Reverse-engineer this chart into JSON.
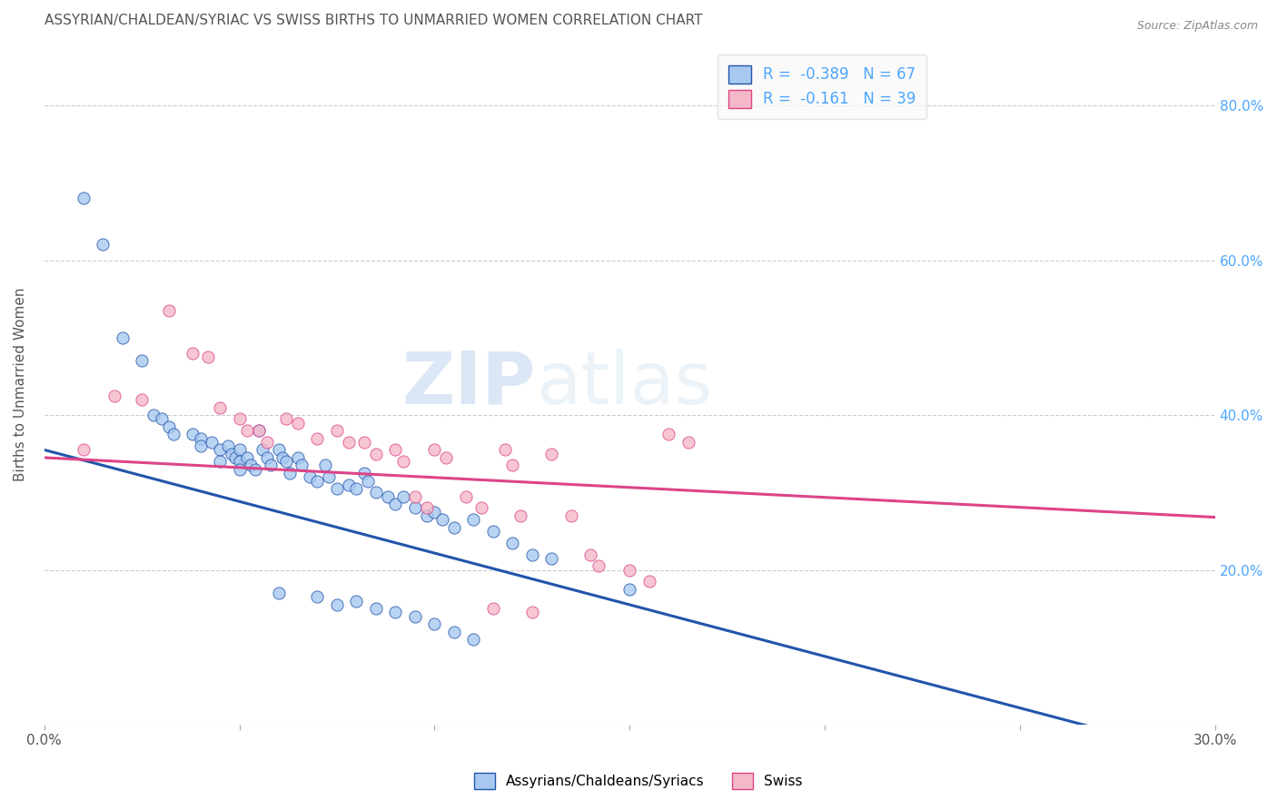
{
  "title": "ASSYRIAN/CHALDEAN/SYRIAC VS SWISS BIRTHS TO UNMARRIED WOMEN CORRELATION CHART",
  "source": "Source: ZipAtlas.com",
  "ylabel": "Births to Unmarried Women",
  "xlim": [
    0.0,
    0.3
  ],
  "ylim": [
    0.0,
    0.88
  ],
  "right_yticks": [
    0.2,
    0.4,
    0.6,
    0.8
  ],
  "right_yticklabels": [
    "20.0%",
    "40.0%",
    "60.0%",
    "80.0%"
  ],
  "xtick_positions": [
    0.0,
    0.05,
    0.1,
    0.15,
    0.2,
    0.25,
    0.3
  ],
  "xticklabels": [
    "0.0%",
    "",
    "",
    "",
    "",
    "",
    "30.0%"
  ],
  "blue_R": "-0.389",
  "blue_N": 67,
  "pink_R": "-0.161",
  "pink_N": 39,
  "blue_color": "#a8c8f0",
  "pink_color": "#f4b8c8",
  "blue_line_color": "#2255aa",
  "pink_line_color": "#dd4488",
  "blue_scatter": [
    [
      0.01,
      0.68
    ],
    [
      0.015,
      0.62
    ],
    [
      0.02,
      0.5
    ],
    [
      0.025,
      0.47
    ],
    [
      0.028,
      0.4
    ],
    [
      0.03,
      0.395
    ],
    [
      0.032,
      0.385
    ],
    [
      0.033,
      0.375
    ],
    [
      0.038,
      0.375
    ],
    [
      0.04,
      0.37
    ],
    [
      0.04,
      0.36
    ],
    [
      0.043,
      0.365
    ],
    [
      0.045,
      0.355
    ],
    [
      0.045,
      0.34
    ],
    [
      0.047,
      0.36
    ],
    [
      0.048,
      0.35
    ],
    [
      0.049,
      0.345
    ],
    [
      0.05,
      0.355
    ],
    [
      0.05,
      0.34
    ],
    [
      0.05,
      0.33
    ],
    [
      0.052,
      0.345
    ],
    [
      0.053,
      0.335
    ],
    [
      0.054,
      0.33
    ],
    [
      0.055,
      0.38
    ],
    [
      0.056,
      0.355
    ],
    [
      0.057,
      0.345
    ],
    [
      0.058,
      0.335
    ],
    [
      0.06,
      0.355
    ],
    [
      0.061,
      0.345
    ],
    [
      0.062,
      0.34
    ],
    [
      0.063,
      0.325
    ],
    [
      0.065,
      0.345
    ],
    [
      0.066,
      0.335
    ],
    [
      0.068,
      0.32
    ],
    [
      0.07,
      0.315
    ],
    [
      0.072,
      0.335
    ],
    [
      0.073,
      0.32
    ],
    [
      0.075,
      0.305
    ],
    [
      0.078,
      0.31
    ],
    [
      0.08,
      0.305
    ],
    [
      0.082,
      0.325
    ],
    [
      0.083,
      0.315
    ],
    [
      0.085,
      0.3
    ],
    [
      0.088,
      0.295
    ],
    [
      0.09,
      0.285
    ],
    [
      0.092,
      0.295
    ],
    [
      0.095,
      0.28
    ],
    [
      0.098,
      0.27
    ],
    [
      0.1,
      0.275
    ],
    [
      0.102,
      0.265
    ],
    [
      0.105,
      0.255
    ],
    [
      0.11,
      0.265
    ],
    [
      0.115,
      0.25
    ],
    [
      0.12,
      0.235
    ],
    [
      0.125,
      0.22
    ],
    [
      0.13,
      0.215
    ],
    [
      0.15,
      0.175
    ],
    [
      0.075,
      0.155
    ],
    [
      0.085,
      0.15
    ],
    [
      0.09,
      0.145
    ],
    [
      0.095,
      0.14
    ],
    [
      0.1,
      0.13
    ],
    [
      0.105,
      0.12
    ],
    [
      0.11,
      0.11
    ],
    [
      0.06,
      0.17
    ],
    [
      0.07,
      0.165
    ],
    [
      0.08,
      0.16
    ]
  ],
  "pink_scatter": [
    [
      0.01,
      0.355
    ],
    [
      0.018,
      0.425
    ],
    [
      0.025,
      0.42
    ],
    [
      0.032,
      0.535
    ],
    [
      0.038,
      0.48
    ],
    [
      0.042,
      0.475
    ],
    [
      0.045,
      0.41
    ],
    [
      0.05,
      0.395
    ],
    [
      0.052,
      0.38
    ],
    [
      0.055,
      0.38
    ],
    [
      0.057,
      0.365
    ],
    [
      0.062,
      0.395
    ],
    [
      0.065,
      0.39
    ],
    [
      0.07,
      0.37
    ],
    [
      0.075,
      0.38
    ],
    [
      0.078,
      0.365
    ],
    [
      0.082,
      0.365
    ],
    [
      0.085,
      0.35
    ],
    [
      0.09,
      0.355
    ],
    [
      0.092,
      0.34
    ],
    [
      0.095,
      0.295
    ],
    [
      0.098,
      0.28
    ],
    [
      0.1,
      0.355
    ],
    [
      0.103,
      0.345
    ],
    [
      0.108,
      0.295
    ],
    [
      0.112,
      0.28
    ],
    [
      0.118,
      0.355
    ],
    [
      0.12,
      0.335
    ],
    [
      0.122,
      0.27
    ],
    [
      0.13,
      0.35
    ],
    [
      0.135,
      0.27
    ],
    [
      0.14,
      0.22
    ],
    [
      0.142,
      0.205
    ],
    [
      0.15,
      0.2
    ],
    [
      0.16,
      0.375
    ],
    [
      0.165,
      0.365
    ],
    [
      0.115,
      0.15
    ],
    [
      0.125,
      0.145
    ],
    [
      0.155,
      0.185
    ]
  ],
  "blue_line_x": [
    0.0,
    0.3
  ],
  "blue_line_y": [
    0.355,
    -0.045
  ],
  "pink_line_x": [
    0.0,
    0.3
  ],
  "pink_line_y": [
    0.345,
    0.268
  ],
  "watermark_zip": "ZIP",
  "watermark_atlas": "atlas",
  "background_color": "#ffffff",
  "grid_color": "#cccccc",
  "title_color": "#555555",
  "axis_label_color": "#555555",
  "right_axis_color": "#4da6ff",
  "legend_facecolor": "#f9f9f9"
}
